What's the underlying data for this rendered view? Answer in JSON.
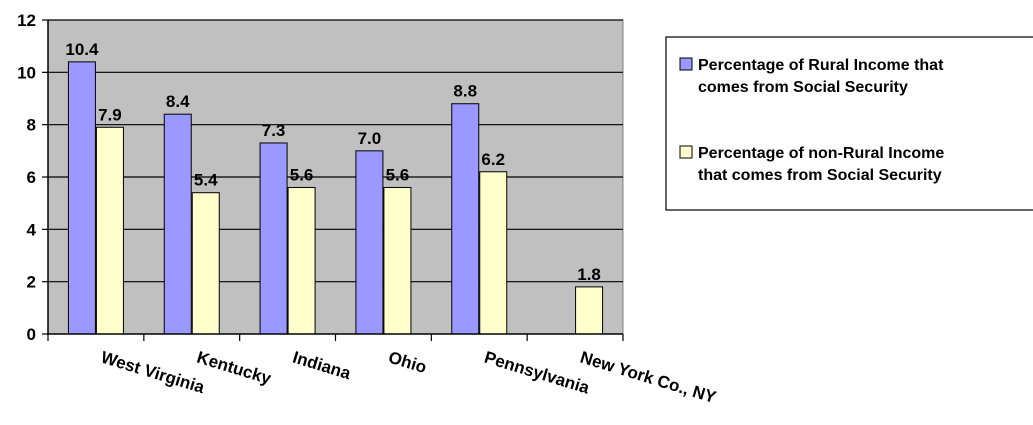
{
  "chart_data": {
    "type": "bar",
    "categories": [
      "West Virginia",
      "Kentucky",
      "Indiana",
      "Ohio",
      "Pennsylvania",
      "New York Co., NY"
    ],
    "series": [
      {
        "name": "Percentage of Rural Income that comes from Social Security",
        "legend_lines": [
          "Percentage of Rural Income that",
          "comes from Social Security"
        ],
        "values": [
          10.4,
          8.4,
          7.3,
          7.0,
          8.8,
          null
        ],
        "labels": [
          "10.4",
          "8.4",
          "7.3",
          "7.0",
          "8.8",
          null
        ],
        "color": "#9999ff"
      },
      {
        "name": "Percentage of non-Rural Income that comes from Social Security",
        "legend_lines": [
          "Percentage of non-Rural Income",
          "that comes from Social Security"
        ],
        "values": [
          7.9,
          5.4,
          5.6,
          5.6,
          6.2,
          1.8
        ],
        "labels": [
          "7.9",
          "5.4",
          "5.6",
          "5.6",
          "6.2",
          "1.8"
        ],
        "color": "#ffffcc"
      }
    ],
    "ylim": [
      0,
      12
    ],
    "yticks": [
      0,
      2,
      4,
      6,
      8,
      10,
      12
    ],
    "ytick_labels": [
      "0",
      "2",
      "4",
      "6",
      "8",
      "10",
      "12"
    ],
    "grid": true,
    "plot_background": "#c0c0c0",
    "legend_position": "right"
  }
}
